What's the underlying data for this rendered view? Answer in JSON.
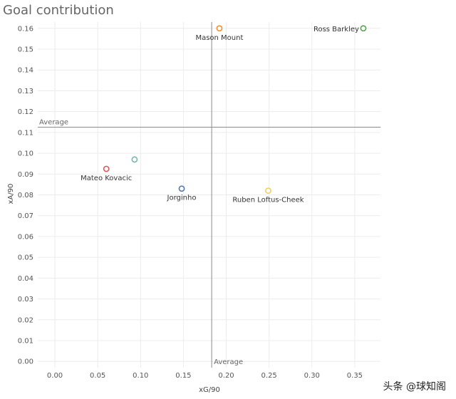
{
  "chart_data": {
    "type": "scatter",
    "title": "Goal contribution",
    "xlabel": "xG/90",
    "ylabel": "xA/90",
    "xlim": [
      -0.02,
      0.38
    ],
    "ylim": [
      -0.003,
      0.163
    ],
    "xticks": [
      0.0,
      0.05,
      0.1,
      0.15,
      0.2,
      0.25,
      0.3,
      0.35
    ],
    "yticks": [
      0.0,
      0.01,
      0.02,
      0.03,
      0.04,
      0.05,
      0.06,
      0.07,
      0.08,
      0.09,
      0.1,
      0.11,
      0.12,
      0.13,
      0.14,
      0.15,
      0.16
    ],
    "grid": true,
    "reference_lines": {
      "x_average": 0.183,
      "y_average": 0.1125,
      "x_label": "Average",
      "y_label": "Average"
    },
    "points": [
      {
        "name": "Ross Barkley",
        "x": 0.36,
        "y": 0.16,
        "color": "#59a14f",
        "label": "Ross Barkley"
      },
      {
        "name": "Mason Mount",
        "x": 0.192,
        "y": 0.16,
        "color": "#f28e2b",
        "label": "Mason Mount"
      },
      {
        "name": "Mateo Kovacic",
        "x": 0.06,
        "y": 0.0925,
        "color": "#e15759",
        "label": "Mateo Kovacic"
      },
      {
        "name": "unlabeled",
        "x": 0.093,
        "y": 0.097,
        "color": "#76b7b2",
        "label": ""
      },
      {
        "name": "Jorginho",
        "x": 0.148,
        "y": 0.083,
        "color": "#4e79a7",
        "label": "Jorginho"
      },
      {
        "name": "Ruben Loftus-Cheek",
        "x": 0.249,
        "y": 0.082,
        "color": "#f1ce63",
        "label": "Ruben Loftus-Cheek"
      }
    ]
  },
  "watermark": "头条 @球知阁"
}
